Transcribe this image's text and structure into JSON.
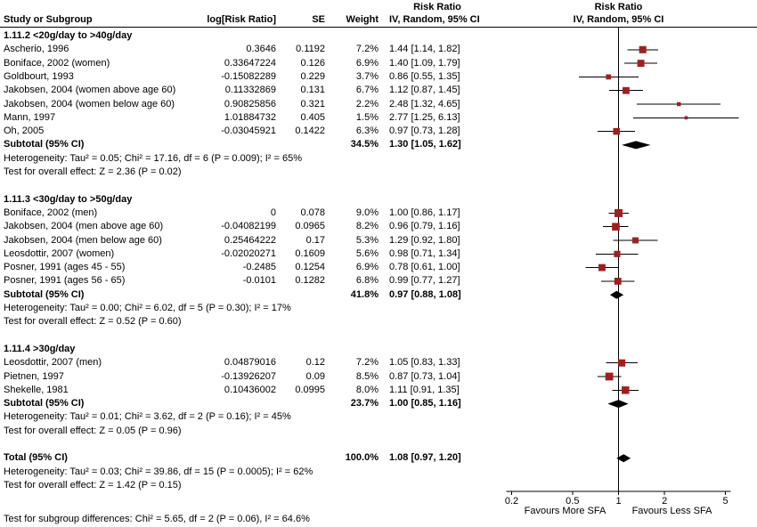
{
  "columns": {
    "risk_ratio_header": "Risk Ratio",
    "study": "Study or Subgroup",
    "logrr": "log[Risk Ratio]",
    "se": "SE",
    "weight": "Weight",
    "ci": "IV, Random, 95% CI"
  },
  "chart_data": {
    "type": "forest",
    "x_scale": "log",
    "ticks": [
      0.2,
      0.5,
      1,
      2,
      5
    ],
    "xlim": [
      0.2,
      5
    ],
    "axis_left_label": "Favours More SFA",
    "axis_right_label": "Favours Less SFA",
    "marker_color": "#a02020",
    "diamond_color": "#000000",
    "groups": [
      {
        "title": "1.11.2 <20g/day to >40g/day",
        "studies": [
          {
            "label": "Ascherio, 1996",
            "logrr": "0.3646",
            "se": "0.1192",
            "weight": "7.2%",
            "w": 7.2,
            "ci_text": "1.44 [1.14, 1.82]",
            "rr": 1.44,
            "lo": 1.14,
            "hi": 1.82
          },
          {
            "label": "Boniface, 2002 (women)",
            "logrr": "0.33647224",
            "se": "0.126",
            "weight": "6.9%",
            "w": 6.9,
            "ci_text": "1.40 [1.09, 1.79]",
            "rr": 1.4,
            "lo": 1.09,
            "hi": 1.79
          },
          {
            "label": "Goldbourt, 1993",
            "logrr": "-0.15082289",
            "se": "0.229",
            "weight": "3.7%",
            "w": 3.7,
            "ci_text": "0.86 [0.55, 1.35]",
            "rr": 0.86,
            "lo": 0.55,
            "hi": 1.35
          },
          {
            "label": "Jakobsen, 2004 (women above age 60)",
            "logrr": "0.11332869",
            "se": "0.131",
            "weight": "6.7%",
            "w": 6.7,
            "ci_text": "1.12 [0.87, 1.45]",
            "rr": 1.12,
            "lo": 0.87,
            "hi": 1.45
          },
          {
            "label": "Jakobsen, 2004 (women below age 60)",
            "logrr": "0.90825856",
            "se": "0.321",
            "weight": "2.2%",
            "w": 2.2,
            "ci_text": "2.48 [1.32, 4.65]",
            "rr": 2.48,
            "lo": 1.32,
            "hi": 4.65
          },
          {
            "label": "Mann, 1997",
            "logrr": "1.01884732",
            "se": "0.405",
            "weight": "1.5%",
            "w": 1.5,
            "ci_text": "2.77 [1.25, 6.13]",
            "rr": 2.77,
            "lo": 1.25,
            "hi": 6.13
          },
          {
            "label": "Oh, 2005",
            "logrr": "-0.03045921",
            "se": "0.1422",
            "weight": "6.3%",
            "w": 6.3,
            "ci_text": "0.97 [0.73, 1.28]",
            "rr": 0.97,
            "lo": 0.73,
            "hi": 1.28
          }
        ],
        "subtotal": {
          "label": "Subtotal (95% CI)",
          "weight": "34.5%",
          "ci_text": "1.30 [1.05, 1.62]",
          "rr": 1.3,
          "lo": 1.05,
          "hi": 1.62
        },
        "heterogeneity": "Heterogeneity: Tau² = 0.05; Chi² = 17.16, df = 6 (P = 0.009); I² = 65%",
        "test": "Test for overall effect: Z = 2.36 (P = 0.02)"
      },
      {
        "title": "1.11.3 <30g/day to >50g/day",
        "studies": [
          {
            "label": "Boniface, 2002 (men)",
            "logrr": "0",
            "se": "0.078",
            "weight": "9.0%",
            "w": 9.0,
            "ci_text": "1.00 [0.86, 1.17]",
            "rr": 1.0,
            "lo": 0.86,
            "hi": 1.17
          },
          {
            "label": "Jakobsen, 2004 (men above age 60)",
            "logrr": "-0.04082199",
            "se": "0.0965",
            "weight": "8.2%",
            "w": 8.2,
            "ci_text": "0.96 [0.79, 1.16]",
            "rr": 0.96,
            "lo": 0.79,
            "hi": 1.16
          },
          {
            "label": "Jakobsen, 2004 (men below age 60)",
            "logrr": "0.25464222",
            "se": "0.17",
            "weight": "5.3%",
            "w": 5.3,
            "ci_text": "1.29 [0.92, 1.80]",
            "rr": 1.29,
            "lo": 0.92,
            "hi": 1.8
          },
          {
            "label": "Leosdottir, 2007 (women)",
            "logrr": "-0.02020271",
            "se": "0.1609",
            "weight": "5.6%",
            "w": 5.6,
            "ci_text": "0.98 [0.71, 1.34]",
            "rr": 0.98,
            "lo": 0.71,
            "hi": 1.34
          },
          {
            "label": "Posner, 1991 (ages 45 - 55)",
            "logrr": "-0.2485",
            "se": "0.1254",
            "weight": "6.9%",
            "w": 6.9,
            "ci_text": "0.78 [0.61, 1.00]",
            "rr": 0.78,
            "lo": 0.61,
            "hi": 1.0
          },
          {
            "label": "Posner, 1991 (ages 56 - 65)",
            "logrr": "-0.0101",
            "se": "0.1282",
            "weight": "6.8%",
            "w": 6.8,
            "ci_text": "0.99 [0.77, 1.27]",
            "rr": 0.99,
            "lo": 0.77,
            "hi": 1.27
          }
        ],
        "subtotal": {
          "label": "Subtotal (95% CI)",
          "weight": "41.8%",
          "ci_text": "0.97 [0.88, 1.08]",
          "rr": 0.97,
          "lo": 0.88,
          "hi": 1.08
        },
        "heterogeneity": "Heterogeneity: Tau² = 0.00; Chi² = 6.02, df = 5 (P = 0.30); I² = 17%",
        "test": "Test for overall effect: Z = 0.52 (P = 0.60)"
      },
      {
        "title": "1.11.4 >30g/day",
        "studies": [
          {
            "label": "Leosdottir, 2007 (men)",
            "logrr": "0.04879016",
            "se": "0.12",
            "weight": "7.2%",
            "w": 7.2,
            "ci_text": "1.05 [0.83, 1.33]",
            "rr": 1.05,
            "lo": 0.83,
            "hi": 1.33
          },
          {
            "label": "Pietnen, 1997",
            "logrr": "-0.13926207",
            "se": "0.09",
            "weight": "8.5%",
            "w": 8.5,
            "ci_text": "0.87 [0.73, 1.04]",
            "rr": 0.87,
            "lo": 0.73,
            "hi": 1.04
          },
          {
            "label": "Shekelle, 1981",
            "logrr": "0.10436002",
            "se": "0.0995",
            "weight": "8.0%",
            "w": 8.0,
            "ci_text": "1.11 [0.91, 1.35]",
            "rr": 1.11,
            "lo": 0.91,
            "hi": 1.35
          }
        ],
        "subtotal": {
          "label": "Subtotal (95% CI)",
          "weight": "23.7%",
          "ci_text": "1.00 [0.85, 1.16]",
          "rr": 1.0,
          "lo": 0.85,
          "hi": 1.16
        },
        "heterogeneity": "Heterogeneity: Tau² = 0.01; Chi² = 3.62, df = 2 (P = 0.16); I² = 45%",
        "test": "Test for overall effect: Z = 0.05 (P = 0.96)"
      }
    ],
    "total": {
      "label": "Total (95% CI)",
      "weight": "100.0%",
      "ci_text": "1.08 [0.97, 1.20]",
      "rr": 1.08,
      "lo": 0.97,
      "hi": 1.2,
      "heterogeneity": "Heterogeneity: Tau² = 0.03; Chi² = 39.86, df = 15 (P = 0.0005); I² = 62%",
      "test": "Test for overall effect: Z = 1.42 (P = 0.15)",
      "subgroup_test": "Test for subgroup differences: Chi² = 5.65, df = 2 (P = 0.06), I² = 64.6%"
    }
  }
}
